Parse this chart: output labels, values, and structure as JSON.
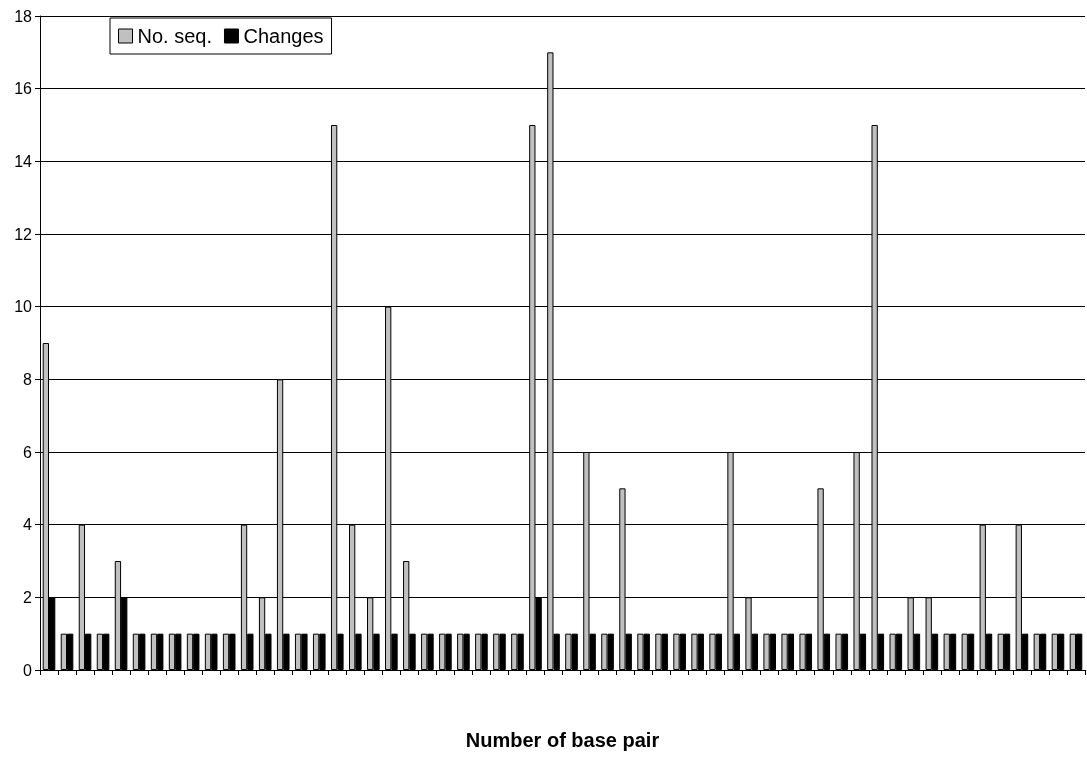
{
  "chart_data": {
    "type": "bar",
    "xlabel": "Number of base pair",
    "categories": [
      null,
      null,
      null,
      null,
      null,
      null,
      null,
      null,
      null,
      null,
      null,
      null,
      null,
      null,
      null,
      null,
      null,
      null,
      null,
      null,
      null,
      null,
      null,
      null,
      null,
      null,
      null,
      null,
      null,
      null,
      null,
      null,
      null,
      null,
      null,
      null,
      null,
      null,
      null,
      null,
      null,
      null,
      null,
      null,
      null,
      null,
      null,
      null,
      null,
      null,
      null,
      null,
      null,
      null,
      null,
      null,
      null,
      null
    ],
    "series": [
      {
        "name": "No. seq.",
        "color": "#c0c0c0",
        "values": [
          9,
          1,
          4,
          1,
          3,
          1,
          1,
          1,
          1,
          1,
          1,
          4,
          2,
          8,
          1,
          1,
          15,
          4,
          2,
          10,
          3,
          1,
          1,
          1,
          1,
          1,
          1,
          15,
          17,
          1,
          6,
          1,
          5,
          1,
          1,
          1,
          1,
          1,
          6,
          2,
          1,
          1,
          1,
          5,
          1,
          6,
          15,
          1,
          2,
          2,
          1,
          1,
          4,
          1,
          4,
          1,
          1,
          1
        ]
      },
      {
        "name": "Changes",
        "color": "#000000",
        "values": [
          2,
          1,
          1,
          1,
          2,
          1,
          1,
          1,
          1,
          1,
          1,
          1,
          1,
          1,
          1,
          1,
          1,
          1,
          1,
          1,
          1,
          1,
          1,
          1,
          1,
          1,
          1,
          2,
          1,
          1,
          1,
          1,
          1,
          1,
          1,
          1,
          1,
          1,
          1,
          1,
          1,
          1,
          1,
          1,
          1,
          1,
          1,
          1,
          1,
          1,
          1,
          1,
          1,
          1,
          1,
          1,
          1,
          1
        ]
      }
    ],
    "ylim": [
      0,
      18
    ],
    "yticks": [
      0,
      2,
      4,
      6,
      8,
      10,
      12,
      14,
      16,
      18
    ],
    "grid": "y",
    "legend": "top left"
  }
}
